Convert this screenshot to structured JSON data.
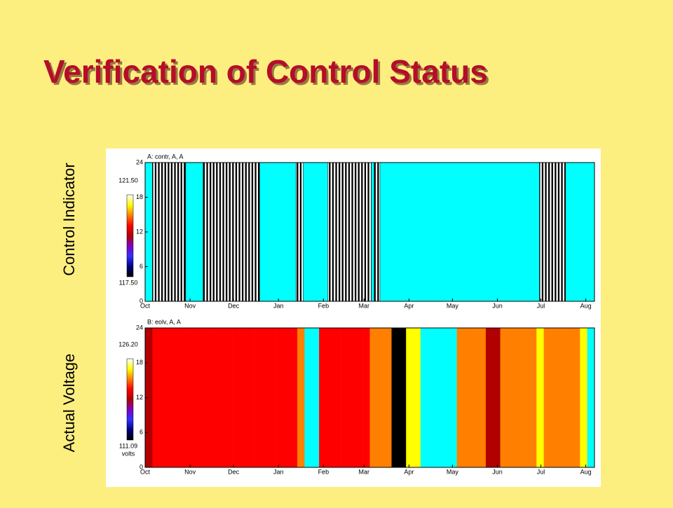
{
  "title": "Verification of Control Status",
  "side_labels": [
    "Control Indicator",
    "Actual Voltage"
  ],
  "chart_data": [
    {
      "type": "spans",
      "title": "A: contr, A, A",
      "xlim": [
        0,
        310
      ],
      "ylim": [
        0,
        24
      ],
      "yticks": [
        0,
        6,
        12,
        18,
        24
      ],
      "xticks": [
        {
          "value": 0,
          "label": "Oct"
        },
        {
          "value": 31,
          "label": "Nov"
        },
        {
          "value": 61,
          "label": "Dec"
        },
        {
          "value": 92,
          "label": "Jan"
        },
        {
          "value": 123,
          "label": "Feb"
        },
        {
          "value": 151,
          "label": "Mar"
        },
        {
          "value": 182,
          "label": "Apr"
        },
        {
          "value": 212,
          "label": "May"
        },
        {
          "value": 243,
          "label": "Jun"
        },
        {
          "value": 273,
          "label": "Jul"
        },
        {
          "value": 304,
          "label": "Aug"
        }
      ],
      "spans": [
        [
          5,
          28
        ],
        [
          40,
          79
        ],
        [
          104,
          109
        ],
        [
          126,
          156
        ],
        [
          158,
          162
        ],
        [
          272,
          290
        ]
      ],
      "span_color": "#000000",
      "background_color": "#00ffff",
      "zlim": [
        117.5,
        121.5
      ],
      "zticks": [
        {
          "value": 121.5,
          "label": "121.50"
        },
        {
          "value": 117.5,
          "label": "117.50"
        }
      ],
      "colorscale": [
        "#000000",
        "#000080",
        "#3030ff",
        "#8000c0",
        "#b00000",
        "#ff0000",
        "#ff8000",
        "#ffff00",
        "#ffffff"
      ]
    },
    {
      "type": "heatmap",
      "title": "B: eolv, A, A",
      "xlim": [
        0,
        310
      ],
      "ylim": [
        0,
        24
      ],
      "yticks": [
        0,
        6,
        12,
        18,
        24
      ],
      "xticks": [
        {
          "value": 0,
          "label": "Oct"
        },
        {
          "value": 31,
          "label": "Nov"
        },
        {
          "value": 61,
          "label": "Dec"
        },
        {
          "value": 92,
          "label": "Jan"
        },
        {
          "value": 123,
          "label": "Feb"
        },
        {
          "value": 151,
          "label": "Mar"
        },
        {
          "value": 182,
          "label": "Apr"
        },
        {
          "value": 212,
          "label": "May"
        },
        {
          "value": 243,
          "label": "Jun"
        },
        {
          "value": 273,
          "label": "Jul"
        },
        {
          "value": 304,
          "label": "Aug"
        }
      ],
      "x": [
        0,
        5,
        10,
        15,
        20,
        25,
        30,
        35,
        40,
        45,
        50,
        55,
        60,
        65,
        70,
        75,
        80,
        85,
        90,
        95,
        100,
        105,
        110,
        115,
        120,
        125,
        130,
        135,
        140,
        145,
        150,
        155,
        160,
        165,
        170,
        175,
        180,
        185,
        190,
        195,
        200,
        205,
        210,
        215,
        220,
        225,
        230,
        235,
        240,
        245,
        250,
        255,
        260,
        265,
        270,
        275,
        280,
        285,
        290,
        295,
        300,
        305
      ],
      "values": [
        118.5,
        121,
        120,
        121,
        120,
        121,
        120,
        121,
        120,
        121,
        120,
        121,
        120,
        120.5,
        121,
        120,
        121,
        120.5,
        121,
        120,
        121,
        121.5,
        null,
        null,
        121,
        120.5,
        121,
        120,
        121,
        120.5,
        121,
        122,
        121.5,
        122,
        112,
        112,
        125,
        124,
        null,
        null,
        null,
        null,
        null,
        122.5,
        123,
        122,
        123,
        119,
        119,
        122,
        123,
        122.5,
        123,
        122,
        123.5,
        122,
        123,
        122.5,
        123,
        122,
        124,
        null
      ],
      "missing_color": "#00ffff",
      "zlim": [
        111.09,
        126.2
      ],
      "zticks": [
        {
          "value": 126.2,
          "label": "126.20"
        },
        {
          "value": 111.09,
          "label": "111.09"
        }
      ],
      "zlabel": "volts",
      "colorscale": [
        "#000000",
        "#000080",
        "#3030ff",
        "#8000c0",
        "#b00000",
        "#ff0000",
        "#ff8000",
        "#ffff00",
        "#ffffff"
      ]
    }
  ]
}
